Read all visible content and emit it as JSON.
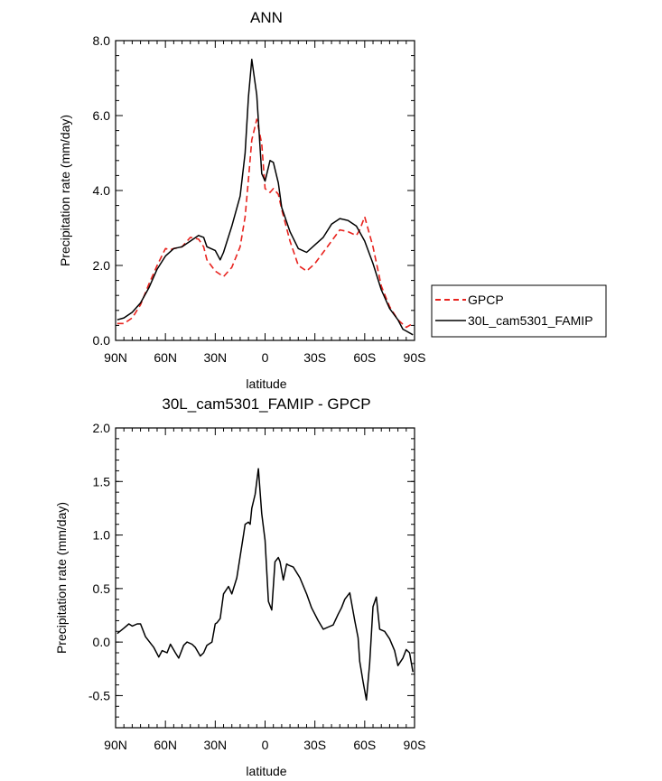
{
  "chart_data": [
    {
      "type": "line",
      "title": "ANN",
      "xlabel": "latitude",
      "ylabel": "Precipitation rate (mm/day)",
      "xlim": [
        90,
        -90
      ],
      "ylim": [
        0,
        8
      ],
      "xticks": [
        90,
        60,
        30,
        0,
        -30,
        -60,
        -90
      ],
      "xtick_labels": [
        "90N",
        "60N",
        "30N",
        "0",
        "30S",
        "60S",
        "90S"
      ],
      "yticks": [
        0,
        2,
        4,
        6,
        8
      ],
      "ytick_labels": [
        "0.0",
        "2.0",
        "4.0",
        "6.0",
        "8.0"
      ],
      "grid": false,
      "legend_position": "right",
      "series": [
        {
          "name": "GPCP",
          "color": "#e8231e",
          "style": "dashed",
          "x": [
            89,
            85,
            80,
            75,
            70,
            65,
            60,
            57,
            55,
            50,
            45,
            40,
            37,
            35,
            30,
            25,
            20,
            15,
            12,
            10,
            8,
            5,
            2,
            0,
            -3,
            -5,
            -8,
            -10,
            -15,
            -20,
            -25,
            -30,
            -35,
            -40,
            -45,
            -50,
            -55,
            -57,
            -60,
            -65,
            -70,
            -75,
            -80,
            -85,
            -89
          ],
          "values": [
            0.45,
            0.45,
            0.6,
            0.95,
            1.5,
            2.0,
            2.45,
            2.42,
            2.45,
            2.5,
            2.75,
            2.7,
            2.5,
            2.15,
            1.85,
            1.7,
            1.95,
            2.5,
            3.3,
            4.3,
            5.35,
            5.9,
            5.25,
            4.05,
            3.95,
            4.05,
            3.9,
            3.5,
            2.65,
            2.0,
            1.85,
            2.05,
            2.35,
            2.65,
            2.95,
            2.9,
            2.8,
            2.95,
            3.3,
            2.5,
            1.45,
            0.9,
            0.55,
            0.35,
            0.45
          ]
        },
        {
          "name": "30L_cam5301_FAMIP",
          "color": "#000000",
          "style": "solid",
          "x": [
            89,
            85,
            80,
            75,
            70,
            65,
            60,
            55,
            50,
            45,
            40,
            37,
            35,
            30,
            27,
            25,
            20,
            15,
            12,
            10,
            8,
            5,
            2,
            0,
            -3,
            -5,
            -8,
            -10,
            -15,
            -20,
            -25,
            -30,
            -35,
            -40,
            -45,
            -50,
            -55,
            -60,
            -65,
            -70,
            -75,
            -80,
            -83,
            -85,
            -89
          ],
          "values": [
            0.55,
            0.6,
            0.75,
            1.0,
            1.4,
            1.9,
            2.25,
            2.45,
            2.5,
            2.65,
            2.8,
            2.75,
            2.5,
            2.4,
            2.15,
            2.35,
            3.05,
            3.85,
            5.0,
            6.5,
            7.5,
            6.55,
            4.45,
            4.25,
            4.8,
            4.75,
            4.2,
            3.55,
            2.9,
            2.45,
            2.35,
            2.55,
            2.75,
            3.1,
            3.25,
            3.2,
            3.05,
            2.65,
            2.05,
            1.35,
            0.85,
            0.55,
            0.3,
            0.25,
            0.15
          ]
        }
      ]
    },
    {
      "type": "line",
      "title": "30L_cam5301_FAMIP - GPCP",
      "xlabel": "latitude",
      "ylabel": "Precipitation rate (mm/day)",
      "xlim": [
        90,
        -90
      ],
      "ylim": [
        -0.8,
        2.0
      ],
      "xticks": [
        90,
        60,
        30,
        0,
        -30,
        -60,
        -90
      ],
      "xtick_labels": [
        "90N",
        "60N",
        "30N",
        "0",
        "30S",
        "60S",
        "90S"
      ],
      "yticks": [
        -0.5,
        0,
        0.5,
        1.0,
        1.5,
        2.0
      ],
      "ytick_labels": [
        "-0.5",
        "0.0",
        "0.5",
        "1.0",
        "1.5",
        "2.0"
      ],
      "grid": false,
      "series": [
        {
          "color": "#000000",
          "style": "solid",
          "x": [
            89,
            85,
            82,
            80,
            77,
            75,
            72,
            69,
            67,
            64,
            62,
            59,
            57,
            54,
            52,
            49,
            47,
            44,
            42,
            39,
            37,
            35,
            32,
            30,
            29,
            27,
            25,
            22,
            20,
            17,
            15,
            13,
            12,
            10,
            9,
            8,
            6,
            4,
            2,
            0,
            -2,
            -4,
            -6,
            -8,
            -9,
            -11,
            -13,
            -14,
            -17,
            -21,
            -25,
            -28,
            -32,
            -35,
            -38,
            -41,
            -44,
            -46,
            -48,
            -51,
            -54,
            -56,
            -57,
            -59,
            -61,
            -63,
            -65,
            -67,
            -69,
            -72,
            -75,
            -78,
            -80,
            -83,
            -85,
            -87,
            -89
          ],
          "values": [
            0.08,
            0.13,
            0.17,
            0.15,
            0.17,
            0.17,
            0.05,
            -0.01,
            -0.05,
            -0.14,
            -0.08,
            -0.1,
            -0.02,
            -0.1,
            -0.15,
            -0.03,
            0.0,
            -0.02,
            -0.05,
            -0.13,
            -0.1,
            -0.03,
            0.0,
            0.17,
            0.18,
            0.22,
            0.45,
            0.52,
            0.45,
            0.6,
            0.8,
            1.0,
            1.1,
            1.12,
            1.1,
            1.25,
            1.38,
            1.62,
            1.2,
            0.95,
            0.38,
            0.3,
            0.75,
            0.79,
            0.75,
            0.58,
            0.73,
            0.72,
            0.7,
            0.6,
            0.45,
            0.32,
            0.2,
            0.12,
            0.14,
            0.16,
            0.26,
            0.32,
            0.4,
            0.46,
            0.2,
            0.04,
            -0.18,
            -0.37,
            -0.54,
            -0.2,
            0.33,
            0.42,
            0.12,
            0.1,
            0.03,
            -0.08,
            -0.22,
            -0.15,
            -0.07,
            -0.1,
            -0.28
          ]
        }
      ]
    }
  ],
  "legend": {
    "items": [
      {
        "label": "GPCP",
        "color": "#e8231e",
        "style": "dashed"
      },
      {
        "label": "30L_cam5301_FAMIP",
        "color": "#000000",
        "style": "solid"
      }
    ]
  }
}
